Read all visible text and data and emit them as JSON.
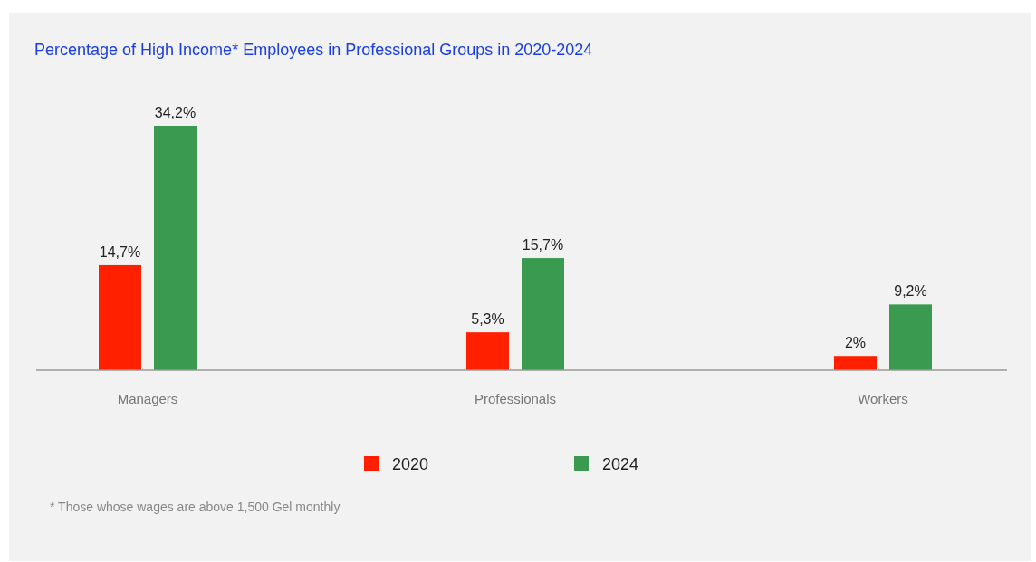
{
  "chart_data": {
    "type": "bar",
    "title": "Percentage of High Income* Employees in Professional Groups in 2020-2024",
    "categories": [
      "Managers",
      "Professionals",
      "Workers"
    ],
    "series": [
      {
        "name": "2020",
        "color": "#ff2000",
        "values": [
          14.7,
          5.3,
          2
        ],
        "value_labels": [
          "14,7%",
          "5,3%",
          "2%"
        ]
      },
      {
        "name": "2024",
        "color": "#3a9b50",
        "values": [
          34.2,
          15.7,
          9.2
        ],
        "value_labels": [
          "34,2%",
          "15,7%",
          "9,2%"
        ]
      }
    ],
    "legend": "bottom",
    "annotations": [
      "* Those whose wages are above 1,500 Gel monthly"
    ]
  }
}
